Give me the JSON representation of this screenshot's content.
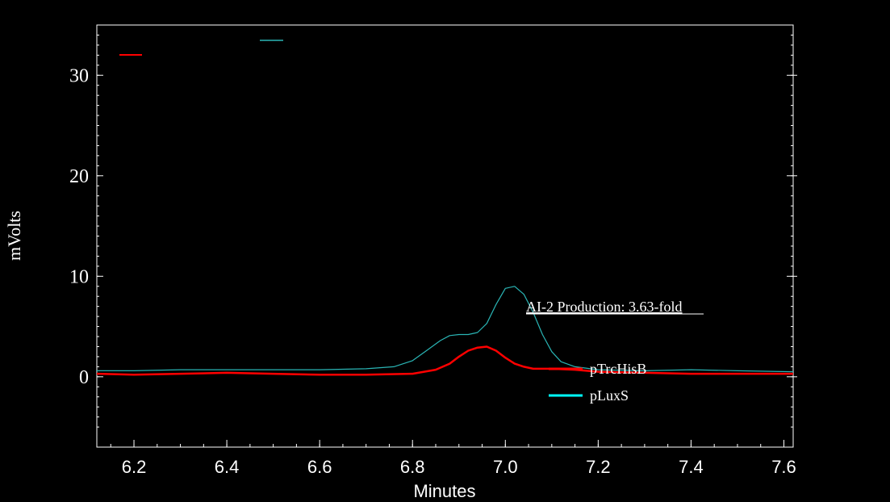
{
  "chart_data": {
    "type": "line",
    "xlabel": "Minutes",
    "ylabel": "mVolts",
    "xlim": [
      6.12,
      7.62
    ],
    "ylim": [
      -7,
      35
    ],
    "xticks": [
      "6.2",
      "6.4",
      "6.6",
      "6.8",
      "7.0",
      "7.2",
      "7.4",
      "7.6"
    ],
    "xtick_values": [
      6.2,
      6.4,
      6.6,
      6.8,
      7.0,
      7.2,
      7.4,
      7.6
    ],
    "yticks": [
      "0",
      "10",
      "20",
      "30"
    ],
    "ytick_values": [
      0,
      10,
      20,
      30
    ],
    "annotation": "AI-2 Production: 3.63-fold",
    "grid": false,
    "legend_placement": "right, inside plot",
    "series": [
      {
        "name": "pLuxS",
        "color": "#2ab5b5",
        "legend_color": "#00ffff",
        "x": [
          6.12,
          6.2,
          6.3,
          6.4,
          6.5,
          6.6,
          6.7,
          6.76,
          6.8,
          6.83,
          6.86,
          6.88,
          6.9,
          6.92,
          6.94,
          6.96,
          6.98,
          7.0,
          7.02,
          7.04,
          7.06,
          7.08,
          7.1,
          7.12,
          7.15,
          7.2,
          7.3,
          7.4,
          7.5,
          7.62
        ],
        "y": [
          0.6,
          0.6,
          0.7,
          0.7,
          0.7,
          0.7,
          0.8,
          1.0,
          1.6,
          2.6,
          3.6,
          4.1,
          4.2,
          4.2,
          4.4,
          5.3,
          7.2,
          8.8,
          9.0,
          8.2,
          6.4,
          4.2,
          2.5,
          1.5,
          1.0,
          0.7,
          0.6,
          0.7,
          0.6,
          0.5
        ]
      },
      {
        "name": "pTrcHisB",
        "color": "#ff0000",
        "legend_color": "#ff0000",
        "x": [
          6.12,
          6.2,
          6.3,
          6.4,
          6.5,
          6.6,
          6.7,
          6.8,
          6.85,
          6.88,
          6.9,
          6.92,
          6.94,
          6.96,
          6.98,
          7.0,
          7.02,
          7.04,
          7.06,
          7.08,
          7.1,
          7.15,
          7.2,
          7.3,
          7.4,
          7.5,
          7.62
        ],
        "y": [
          0.3,
          0.2,
          0.3,
          0.4,
          0.3,
          0.2,
          0.2,
          0.3,
          0.7,
          1.3,
          2.0,
          2.6,
          2.9,
          3.0,
          2.6,
          1.9,
          1.3,
          1.0,
          0.8,
          0.8,
          0.8,
          0.7,
          0.5,
          0.4,
          0.3,
          0.3,
          0.3
        ]
      }
    ]
  }
}
